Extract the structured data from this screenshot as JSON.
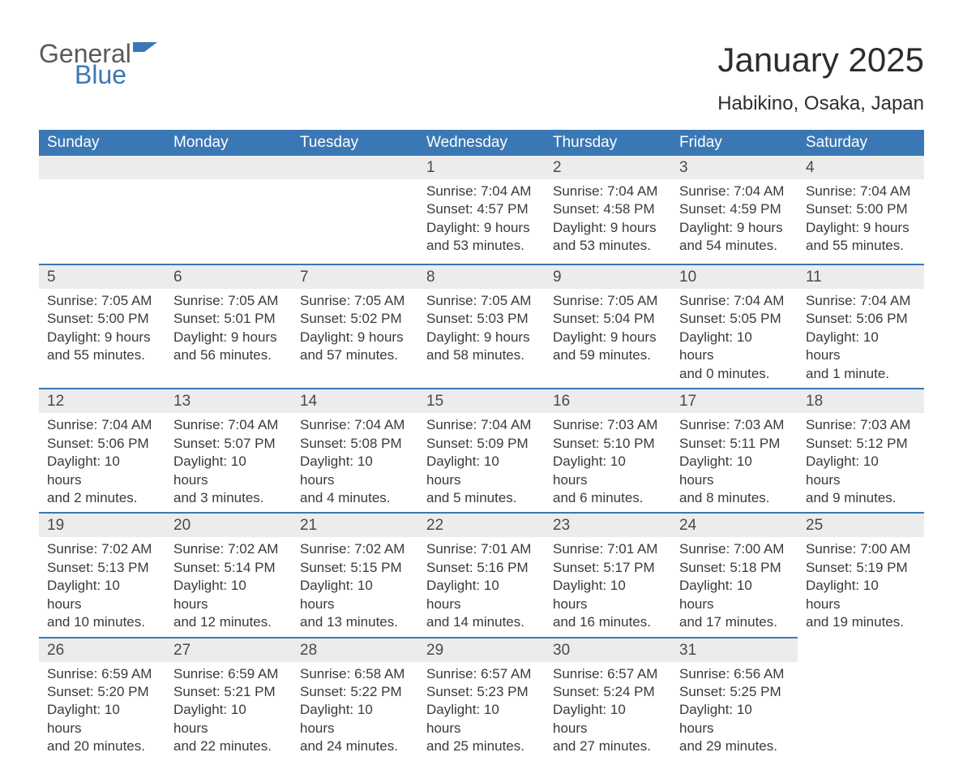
{
  "brand": {
    "line1": "General",
    "line2": "Blue",
    "logo_color": "#3a78b5",
    "text_color_gray": "#5a5a5a"
  },
  "title": "January 2025",
  "location": "Habikino, Osaka, Japan",
  "header_bg": "#3a78b5",
  "header_text_color": "#ffffff",
  "daynum_bg": "#ececec",
  "row_divider_color": "#3a78b5",
  "body_text_color": "#3a3a3a",
  "page_bg": "#ffffff",
  "fontsize_title": 42,
  "fontsize_location": 24,
  "fontsize_dayheader": 19,
  "fontsize_daynum": 19,
  "fontsize_body": 17,
  "weekdays": [
    "Sunday",
    "Monday",
    "Tuesday",
    "Wednesday",
    "Thursday",
    "Friday",
    "Saturday"
  ],
  "weeks": [
    [
      null,
      null,
      null,
      {
        "n": "1",
        "sunrise": "Sunrise: 7:04 AM",
        "sunset": "Sunset: 4:57 PM",
        "day1": "Daylight: 9 hours",
        "day2": "and 53 minutes."
      },
      {
        "n": "2",
        "sunrise": "Sunrise: 7:04 AM",
        "sunset": "Sunset: 4:58 PM",
        "day1": "Daylight: 9 hours",
        "day2": "and 53 minutes."
      },
      {
        "n": "3",
        "sunrise": "Sunrise: 7:04 AM",
        "sunset": "Sunset: 4:59 PM",
        "day1": "Daylight: 9 hours",
        "day2": "and 54 minutes."
      },
      {
        "n": "4",
        "sunrise": "Sunrise: 7:04 AM",
        "sunset": "Sunset: 5:00 PM",
        "day1": "Daylight: 9 hours",
        "day2": "and 55 minutes."
      }
    ],
    [
      {
        "n": "5",
        "sunrise": "Sunrise: 7:05 AM",
        "sunset": "Sunset: 5:00 PM",
        "day1": "Daylight: 9 hours",
        "day2": "and 55 minutes."
      },
      {
        "n": "6",
        "sunrise": "Sunrise: 7:05 AM",
        "sunset": "Sunset: 5:01 PM",
        "day1": "Daylight: 9 hours",
        "day2": "and 56 minutes."
      },
      {
        "n": "7",
        "sunrise": "Sunrise: 7:05 AM",
        "sunset": "Sunset: 5:02 PM",
        "day1": "Daylight: 9 hours",
        "day2": "and 57 minutes."
      },
      {
        "n": "8",
        "sunrise": "Sunrise: 7:05 AM",
        "sunset": "Sunset: 5:03 PM",
        "day1": "Daylight: 9 hours",
        "day2": "and 58 minutes."
      },
      {
        "n": "9",
        "sunrise": "Sunrise: 7:05 AM",
        "sunset": "Sunset: 5:04 PM",
        "day1": "Daylight: 9 hours",
        "day2": "and 59 minutes."
      },
      {
        "n": "10",
        "sunrise": "Sunrise: 7:04 AM",
        "sunset": "Sunset: 5:05 PM",
        "day1": "Daylight: 10 hours",
        "day2": "and 0 minutes."
      },
      {
        "n": "11",
        "sunrise": "Sunrise: 7:04 AM",
        "sunset": "Sunset: 5:06 PM",
        "day1": "Daylight: 10 hours",
        "day2": "and 1 minute."
      }
    ],
    [
      {
        "n": "12",
        "sunrise": "Sunrise: 7:04 AM",
        "sunset": "Sunset: 5:06 PM",
        "day1": "Daylight: 10 hours",
        "day2": "and 2 minutes."
      },
      {
        "n": "13",
        "sunrise": "Sunrise: 7:04 AM",
        "sunset": "Sunset: 5:07 PM",
        "day1": "Daylight: 10 hours",
        "day2": "and 3 minutes."
      },
      {
        "n": "14",
        "sunrise": "Sunrise: 7:04 AM",
        "sunset": "Sunset: 5:08 PM",
        "day1": "Daylight: 10 hours",
        "day2": "and 4 minutes."
      },
      {
        "n": "15",
        "sunrise": "Sunrise: 7:04 AM",
        "sunset": "Sunset: 5:09 PM",
        "day1": "Daylight: 10 hours",
        "day2": "and 5 minutes."
      },
      {
        "n": "16",
        "sunrise": "Sunrise: 7:03 AM",
        "sunset": "Sunset: 5:10 PM",
        "day1": "Daylight: 10 hours",
        "day2": "and 6 minutes."
      },
      {
        "n": "17",
        "sunrise": "Sunrise: 7:03 AM",
        "sunset": "Sunset: 5:11 PM",
        "day1": "Daylight: 10 hours",
        "day2": "and 8 minutes."
      },
      {
        "n": "18",
        "sunrise": "Sunrise: 7:03 AM",
        "sunset": "Sunset: 5:12 PM",
        "day1": "Daylight: 10 hours",
        "day2": "and 9 minutes."
      }
    ],
    [
      {
        "n": "19",
        "sunrise": "Sunrise: 7:02 AM",
        "sunset": "Sunset: 5:13 PM",
        "day1": "Daylight: 10 hours",
        "day2": "and 10 minutes."
      },
      {
        "n": "20",
        "sunrise": "Sunrise: 7:02 AM",
        "sunset": "Sunset: 5:14 PM",
        "day1": "Daylight: 10 hours",
        "day2": "and 12 minutes."
      },
      {
        "n": "21",
        "sunrise": "Sunrise: 7:02 AM",
        "sunset": "Sunset: 5:15 PM",
        "day1": "Daylight: 10 hours",
        "day2": "and 13 minutes."
      },
      {
        "n": "22",
        "sunrise": "Sunrise: 7:01 AM",
        "sunset": "Sunset: 5:16 PM",
        "day1": "Daylight: 10 hours",
        "day2": "and 14 minutes."
      },
      {
        "n": "23",
        "sunrise": "Sunrise: 7:01 AM",
        "sunset": "Sunset: 5:17 PM",
        "day1": "Daylight: 10 hours",
        "day2": "and 16 minutes."
      },
      {
        "n": "24",
        "sunrise": "Sunrise: 7:00 AM",
        "sunset": "Sunset: 5:18 PM",
        "day1": "Daylight: 10 hours",
        "day2": "and 17 minutes."
      },
      {
        "n": "25",
        "sunrise": "Sunrise: 7:00 AM",
        "sunset": "Sunset: 5:19 PM",
        "day1": "Daylight: 10 hours",
        "day2": "and 19 minutes."
      }
    ],
    [
      {
        "n": "26",
        "sunrise": "Sunrise: 6:59 AM",
        "sunset": "Sunset: 5:20 PM",
        "day1": "Daylight: 10 hours",
        "day2": "and 20 minutes."
      },
      {
        "n": "27",
        "sunrise": "Sunrise: 6:59 AM",
        "sunset": "Sunset: 5:21 PM",
        "day1": "Daylight: 10 hours",
        "day2": "and 22 minutes."
      },
      {
        "n": "28",
        "sunrise": "Sunrise: 6:58 AM",
        "sunset": "Sunset: 5:22 PM",
        "day1": "Daylight: 10 hours",
        "day2": "and 24 minutes."
      },
      {
        "n": "29",
        "sunrise": "Sunrise: 6:57 AM",
        "sunset": "Sunset: 5:23 PM",
        "day1": "Daylight: 10 hours",
        "day2": "and 25 minutes."
      },
      {
        "n": "30",
        "sunrise": "Sunrise: 6:57 AM",
        "sunset": "Sunset: 5:24 PM",
        "day1": "Daylight: 10 hours",
        "day2": "and 27 minutes."
      },
      {
        "n": "31",
        "sunrise": "Sunrise: 6:56 AM",
        "sunset": "Sunset: 5:25 PM",
        "day1": "Daylight: 10 hours",
        "day2": "and 29 minutes."
      },
      null
    ]
  ]
}
